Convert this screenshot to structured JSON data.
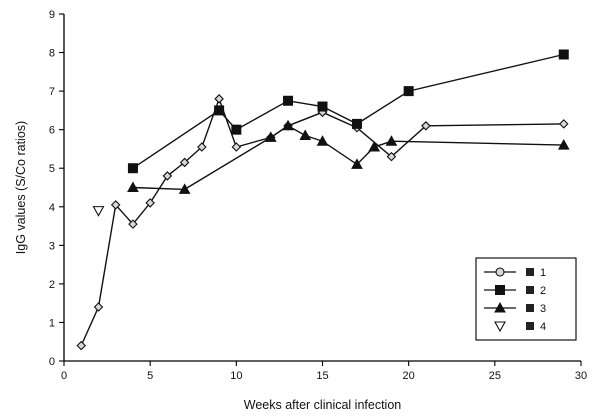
{
  "chart_data": {
    "type": "line",
    "title": "",
    "xlabel": "Weeks after clinical infection",
    "ylabel": "IgG values (S/Co ratios)",
    "xlim": [
      0,
      30
    ],
    "ylim": [
      0,
      9
    ],
    "x_ticks": [
      0,
      5,
      10,
      15,
      20,
      25,
      30
    ],
    "y_ticks": [
      0,
      1,
      2,
      3,
      4,
      5,
      6,
      7,
      8,
      9
    ],
    "grid": false,
    "legend_position": "bottom-right",
    "series": [
      {
        "name": "1",
        "marker": "diamond",
        "color": "#111111",
        "points": [
          [
            1,
            0.4
          ],
          [
            2,
            1.4
          ],
          [
            3,
            4.05
          ],
          [
            4,
            3.55
          ],
          [
            5,
            4.1
          ],
          [
            6,
            4.8
          ],
          [
            7,
            5.15
          ],
          [
            8,
            5.55
          ],
          [
            9,
            6.8
          ],
          [
            10,
            5.55
          ],
          [
            12,
            5.8
          ],
          [
            13,
            6.1
          ],
          [
            15,
            6.45
          ],
          [
            17,
            6.05
          ],
          [
            19,
            5.3
          ],
          [
            21,
            6.1
          ],
          [
            29,
            6.15
          ]
        ]
      },
      {
        "name": "2",
        "marker": "square",
        "color": "#111111",
        "points": [
          [
            4,
            5.0
          ],
          [
            9,
            6.5
          ],
          [
            10,
            6.0
          ],
          [
            13,
            6.75
          ],
          [
            15,
            6.6
          ],
          [
            17,
            6.15
          ],
          [
            20,
            7.0
          ],
          [
            29,
            7.95
          ]
        ]
      },
      {
        "name": "3",
        "marker": "triangle",
        "color": "#111111",
        "points": [
          [
            4,
            4.5
          ],
          [
            7,
            4.45
          ],
          [
            12,
            5.8
          ],
          [
            13,
            6.1
          ],
          [
            14,
            5.85
          ],
          [
            15,
            5.7
          ],
          [
            17,
            5.1
          ],
          [
            18,
            5.55
          ],
          [
            19,
            5.7
          ],
          [
            29,
            5.6
          ]
        ]
      },
      {
        "name": "4",
        "marker": "triangle-down-open",
        "color": "#111111",
        "points": [
          [
            2,
            3.9
          ]
        ]
      }
    ]
  }
}
